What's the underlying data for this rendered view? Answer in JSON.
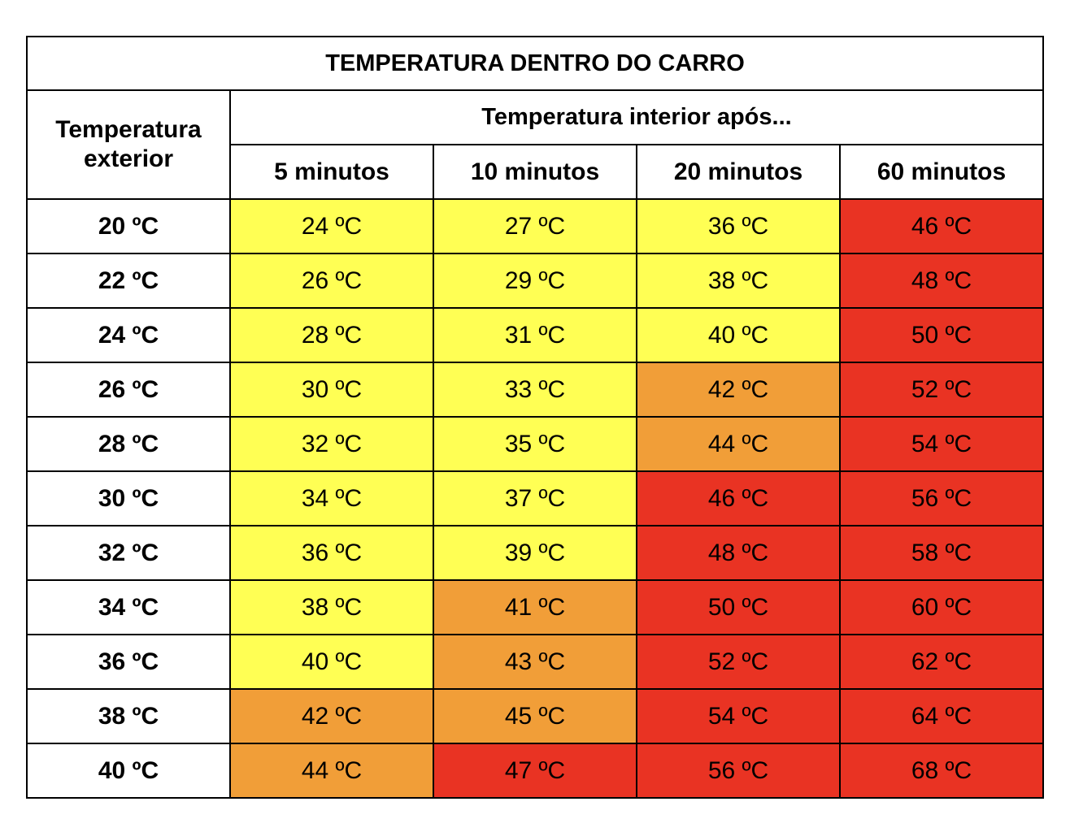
{
  "chart_data": {
    "type": "table",
    "title": "TEMPERATURA DENTRO DO CARRO",
    "row_header": "Temperatura exterior",
    "column_group_header": "Temperatura interior após...",
    "columns": [
      "5 minutos",
      "10 minutos",
      "20 minutos",
      "60 minutos"
    ],
    "unit": "ºC",
    "colors": {
      "yellow": "#FFFF54",
      "orange": "#F19E38",
      "red": "#E93323",
      "white": "#FFFFFF"
    },
    "rows": [
      {
        "outside": "20 ºC",
        "values": [
          "24 ºC",
          "27 ºC",
          "36 ºC",
          "46 ºC"
        ],
        "levels": [
          "yellow",
          "yellow",
          "yellow",
          "red"
        ]
      },
      {
        "outside": "22 ºC",
        "values": [
          "26 ºC",
          "29 ºC",
          "38 ºC",
          "48 ºC"
        ],
        "levels": [
          "yellow",
          "yellow",
          "yellow",
          "red"
        ]
      },
      {
        "outside": "24 ºC",
        "values": [
          "28 ºC",
          "31 ºC",
          "40 ºC",
          "50 ºC"
        ],
        "levels": [
          "yellow",
          "yellow",
          "yellow",
          "red"
        ]
      },
      {
        "outside": "26 ºC",
        "values": [
          "30 ºC",
          "33 ºC",
          "42 ºC",
          "52 ºC"
        ],
        "levels": [
          "yellow",
          "yellow",
          "orange",
          "red"
        ]
      },
      {
        "outside": "28 ºC",
        "values": [
          "32 ºC",
          "35 ºC",
          "44 ºC",
          "54 ºC"
        ],
        "levels": [
          "yellow",
          "yellow",
          "orange",
          "red"
        ]
      },
      {
        "outside": "30 ºC",
        "values": [
          "34 ºC",
          "37 ºC",
          "46 ºC",
          "56 ºC"
        ],
        "levels": [
          "yellow",
          "yellow",
          "red",
          "red"
        ]
      },
      {
        "outside": "32 ºC",
        "values": [
          "36 ºC",
          "39 ºC",
          "48 ºC",
          "58 ºC"
        ],
        "levels": [
          "yellow",
          "yellow",
          "red",
          "red"
        ]
      },
      {
        "outside": "34 ºC",
        "values": [
          "38 ºC",
          "41 ºC",
          "50 ºC",
          "60 ºC"
        ],
        "levels": [
          "yellow",
          "orange",
          "red",
          "red"
        ]
      },
      {
        "outside": "36 ºC",
        "values": [
          "40 ºC",
          "43 ºC",
          "52 ºC",
          "62 ºC"
        ],
        "levels": [
          "yellow",
          "orange",
          "red",
          "red"
        ]
      },
      {
        "outside": "38 ºC",
        "values": [
          "42 ºC",
          "45 ºC",
          "54 ºC",
          "64 ºC"
        ],
        "levels": [
          "orange",
          "orange",
          "red",
          "red"
        ]
      },
      {
        "outside": "40 ºC",
        "values": [
          "44 ºC",
          "47 ºC",
          "56 ºC",
          "68 ºC"
        ],
        "levels": [
          "orange",
          "red",
          "red",
          "red"
        ]
      }
    ]
  }
}
